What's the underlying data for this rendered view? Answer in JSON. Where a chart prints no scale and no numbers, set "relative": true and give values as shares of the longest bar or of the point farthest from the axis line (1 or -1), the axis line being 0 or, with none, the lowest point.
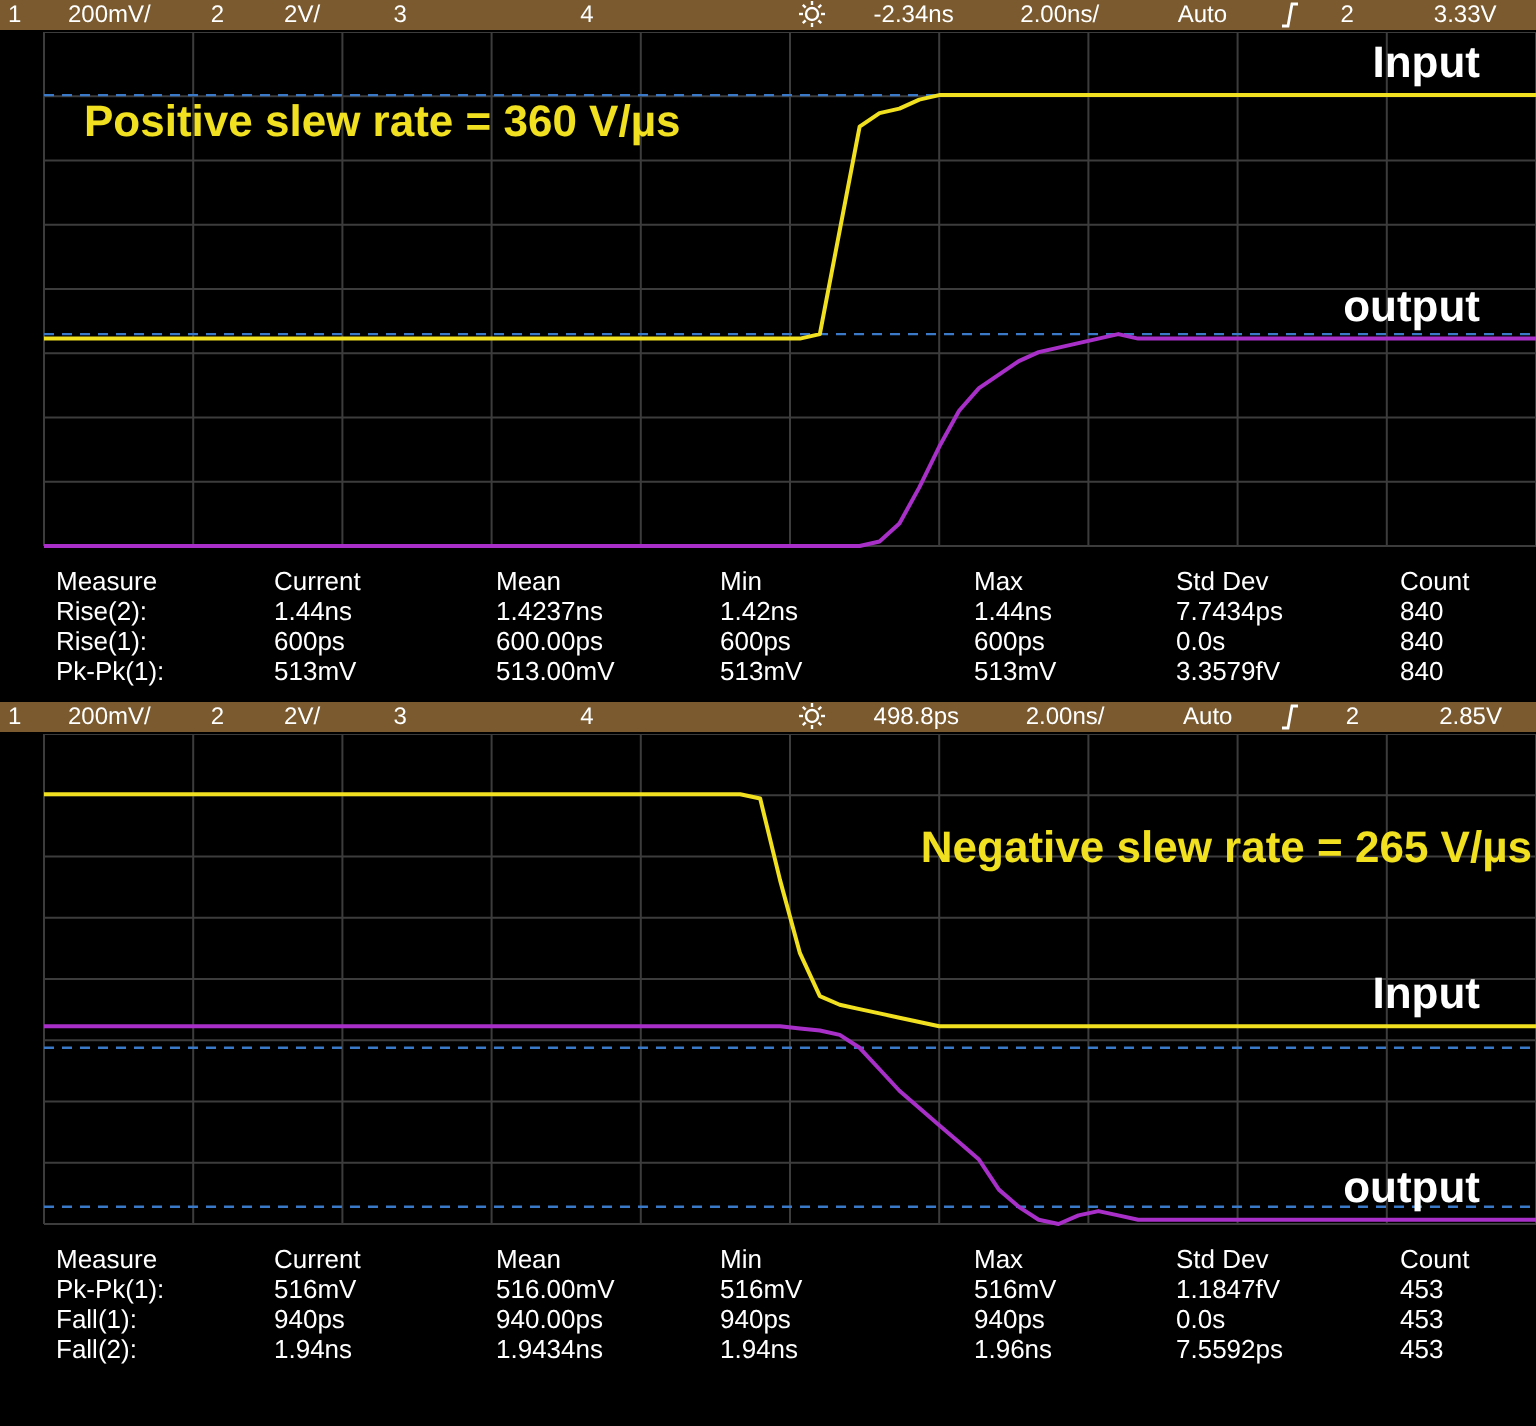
{
  "chart_data": [
    {
      "type": "line",
      "relative": true,
      "grid": true,
      "subtitle": "1       200mV/         2         2V/           3                          4                                          -2.34ns          2.00ns/            Auto                 2            3.33V",
      "annotations": [
        "Positive slew rate = 360 V/µs"
      ],
      "categories": [
        null,
        null,
        null,
        null,
        null,
        null,
        null,
        null,
        null,
        null,
        null,
        null,
        null,
        null,
        null,
        null,
        null,
        null,
        null,
        null,
        null,
        null,
        null,
        null,
        null,
        null,
        null,
        null,
        null,
        null,
        null,
        null,
        null,
        null,
        null,
        null,
        null,
        null,
        null,
        null,
        null,
        null,
        null,
        null,
        null,
        null,
        null,
        null,
        null,
        null,
        null,
        null,
        null,
        null,
        null,
        null,
        null,
        null,
        null,
        null,
        null,
        null,
        null,
        null,
        null,
        null,
        null,
        null,
        null,
        null,
        null,
        null,
        null,
        null,
        null,
        null
      ],
      "ref_lines": [
        {
          "axis": "y",
          "value": 1,
          "color": "#3a78c8",
          "line_style": "dashed"
        },
        {
          "axis": "y",
          "value": 0.47,
          "color": "#3a78c8",
          "line_style": "dashed"
        }
      ],
      "series": [
        {
          "name": "Input",
          "color": "#f0e020",
          "values": [
            0.46,
            0.46,
            0.46,
            0.46,
            0.46,
            0.46,
            0.46,
            0.46,
            0.46,
            0.46,
            0.46,
            0.46,
            0.46,
            0.46,
            0.46,
            0.46,
            0.46,
            0.46,
            0.46,
            0.46,
            0.46,
            0.46,
            0.46,
            0.46,
            0.46,
            0.46,
            0.46,
            0.46,
            0.46,
            0.46,
            0.46,
            0.46,
            0.46,
            0.46,
            0.46,
            0.46,
            0.46,
            0.46,
            0.46,
            0.47,
            0.7,
            0.93,
            0.96,
            0.97,
            0.99,
            1,
            1,
            1,
            1,
            1,
            1,
            1,
            1,
            1,
            1,
            1,
            1,
            1,
            1,
            1,
            1,
            1,
            1,
            1,
            1,
            1,
            1,
            1,
            1,
            1,
            1,
            1,
            1,
            1,
            1,
            1
          ]
        },
        {
          "name": "output",
          "color": "#a830c8",
          "values": [
            0,
            0,
            0,
            0,
            0,
            0,
            0,
            0,
            0,
            0,
            0,
            0,
            0,
            0,
            0,
            0,
            0,
            0,
            0,
            0,
            0,
            0,
            0,
            0,
            0,
            0,
            0,
            0,
            0,
            0,
            0,
            0,
            0,
            0,
            0,
            0,
            0,
            0,
            0,
            0,
            0,
            0,
            0.01,
            0.05,
            0.13,
            0.22,
            0.3,
            0.35,
            0.38,
            0.41,
            0.43,
            0.44,
            0.45,
            0.46,
            0.47,
            0.46,
            0.46,
            0.46,
            0.46,
            0.46,
            0.46,
            0.46,
            0.46,
            0.46,
            0.46,
            0.46,
            0.46,
            0.46,
            0.46,
            0.46,
            0.46,
            0.46,
            0.46,
            0.46,
            0.46,
            0.46
          ]
        }
      ]
    },
    {
      "type": "other",
      "annotations": [
        "Measure",
        "Current",
        "Mean",
        "Min",
        "Max",
        "Std Dev",
        "Count",
        "Rise(2):",
        "1.44ns",
        "1.4237ns",
        "1.42ns",
        "1.44ns",
        "7.7434ps",
        "840",
        "Rise(1):",
        "600ps",
        "600.00ps",
        "600ps",
        "600ps",
        "0.0s",
        "840",
        "Pk-Pk(1):",
        "513mV",
        "513.00mV",
        "513mV",
        "513mV",
        "3.3579fV",
        "840"
      ]
    },
    {
      "type": "line",
      "relative": true,
      "grid": true,
      "subtitle": "1       200mV/         2         2V/           3                          4                                          498.8ps          2.00ns/            Auto                 2            2.85V",
      "annotations": [
        "Negative slew rate = 265 V/µs"
      ],
      "categories": [
        null,
        null,
        null,
        null,
        null,
        null,
        null,
        null,
        null,
        null,
        null,
        null,
        null,
        null,
        null,
        null,
        null,
        null,
        null,
        null,
        null,
        null,
        null,
        null,
        null,
        null,
        null,
        null,
        null,
        null,
        null,
        null,
        null,
        null,
        null,
        null,
        null,
        null,
        null,
        null,
        null,
        null,
        null,
        null,
        null,
        null,
        null,
        null,
        null,
        null,
        null,
        null,
        null,
        null,
        null,
        null,
        null,
        null,
        null,
        null,
        null,
        null,
        null,
        null,
        null,
        null,
        null,
        null,
        null,
        null,
        null,
        null,
        null,
        null,
        null,
        null
      ],
      "ref_lines": [
        {
          "axis": "y",
          "value": 0.41,
          "color": "#3a78c8",
          "line_style": "dashed"
        },
        {
          "axis": "y",
          "value": 0.04,
          "color": "#3a78c8",
          "line_style": "dashed"
        }
      ],
      "series": [
        {
          "name": "Input",
          "color": "#f0e020",
          "values": [
            1,
            1,
            1,
            1,
            1,
            1,
            1,
            1,
            1,
            1,
            1,
            1,
            1,
            1,
            1,
            1,
            1,
            1,
            1,
            1,
            1,
            1,
            1,
            1,
            1,
            1,
            1,
            1,
            1,
            1,
            1,
            1,
            1,
            1,
            1,
            1,
            0.99,
            0.8,
            0.63,
            0.53,
            0.51,
            0.5,
            0.49,
            0.48,
            0.47,
            0.46,
            0.46,
            0.46,
            0.46,
            0.46,
            0.46,
            0.46,
            0.46,
            0.46,
            0.46,
            0.46,
            0.46,
            0.46,
            0.46,
            0.46,
            0.46,
            0.46,
            0.46,
            0.46,
            0.46,
            0.46,
            0.46,
            0.46,
            0.46,
            0.46,
            0.46,
            0.46,
            0.46,
            0.46,
            0.46,
            0.46
          ]
        },
        {
          "name": "output",
          "color": "#a830c8",
          "values": [
            0.46,
            0.46,
            0.46,
            0.46,
            0.46,
            0.46,
            0.46,
            0.46,
            0.46,
            0.46,
            0.46,
            0.46,
            0.46,
            0.46,
            0.46,
            0.46,
            0.46,
            0.46,
            0.46,
            0.46,
            0.46,
            0.46,
            0.46,
            0.46,
            0.46,
            0.46,
            0.46,
            0.46,
            0.46,
            0.46,
            0.46,
            0.46,
            0.46,
            0.46,
            0.46,
            0.46,
            0.46,
            0.46,
            0.455,
            0.45,
            0.44,
            0.41,
            0.36,
            0.31,
            0.27,
            0.23,
            0.19,
            0.15,
            0.08,
            0.04,
            0.01,
            0,
            0.02,
            0.03,
            0.02,
            0.01,
            0.01,
            0.01,
            0.01,
            0.01,
            0.01,
            0.01,
            0.01,
            0.01,
            0.01,
            0.01,
            0.01,
            0.01,
            0.01,
            0.01,
            0.01,
            0.01,
            0.01,
            0.01,
            0.01,
            0.01
          ]
        }
      ]
    },
    {
      "type": "other",
      "annotations": [
        "Measure",
        "Current",
        "Mean",
        "Min",
        "Max",
        "Std Dev",
        "Count",
        "Pk-Pk(1):",
        "516mV",
        "516.00mV",
        "516mV",
        "516mV",
        "1.1847fV",
        "453",
        "Fall(1):",
        "940ps",
        "940.00ps",
        "940ps",
        "940ps",
        "0.0s",
        "453",
        "Fall(2):",
        "1.94ns",
        "1.9434ns",
        "1.94ns",
        "1.96ns",
        "7.5592ps",
        "453"
      ]
    }
  ]
}
